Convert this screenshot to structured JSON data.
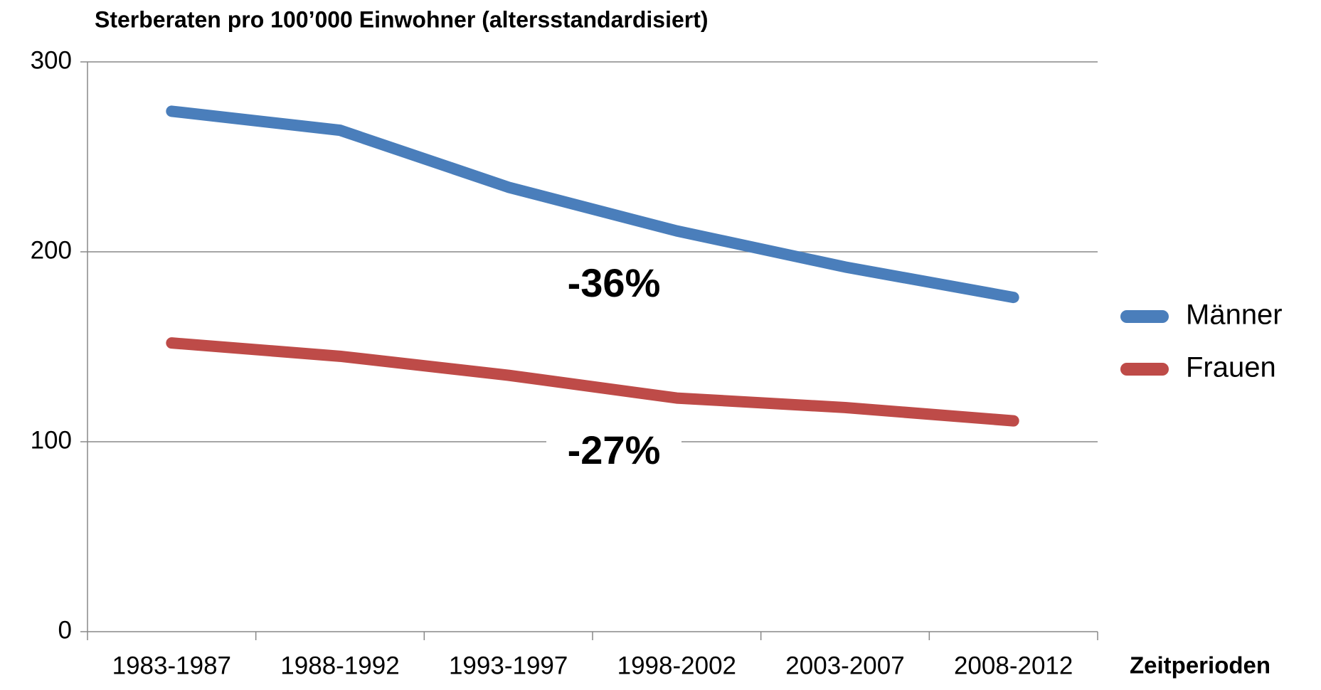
{
  "chart_data": {
    "type": "line",
    "title": "Sterberaten pro 100’000 Einwohner (altersstandardisiert)",
    "x_label": "Zeitperioden",
    "categories": [
      "1983-1987",
      "1988-1992",
      "1993-1997",
      "1998-2002",
      "2003-2007",
      "2008-2012"
    ],
    "series": [
      {
        "name": "Männer",
        "color": "#4a7ebb",
        "values": [
          274,
          264,
          234,
          211,
          192,
          176
        ]
      },
      {
        "name": "Frauen",
        "color": "#be4b48",
        "values": [
          152,
          145,
          135,
          123,
          118,
          111
        ]
      }
    ],
    "annotations": [
      "-36%",
      "-27%"
    ],
    "ylim": [
      0,
      300
    ],
    "yticks": [
      0,
      100,
      200,
      300
    ],
    "grid": true,
    "legend": "right"
  }
}
